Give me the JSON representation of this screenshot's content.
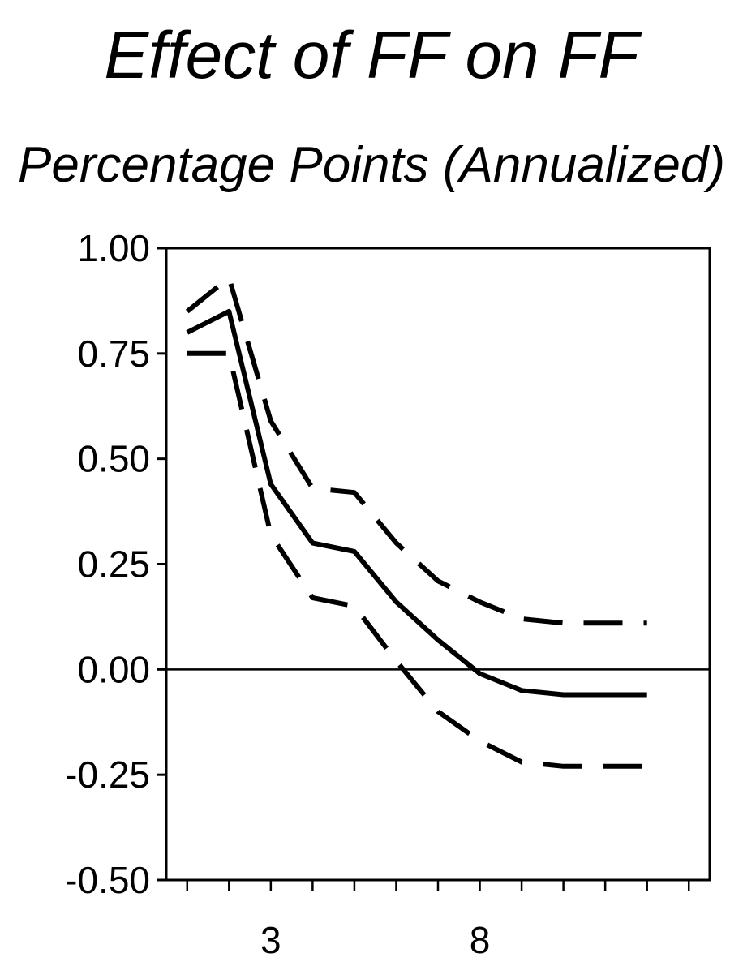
{
  "chart_data": {
    "type": "line",
    "title": "Effect of FF on FF",
    "subtitle": "Percentage Points (Annualized)",
    "xlabel": "",
    "ylabel": "",
    "x": [
      1,
      2,
      3,
      4,
      5,
      6,
      7,
      8,
      9,
      10,
      11,
      12
    ],
    "xlim": [
      0.5,
      13.5
    ],
    "ylim": [
      -0.5,
      1.0
    ],
    "yticks": [
      1.0,
      0.75,
      0.5,
      0.25,
      0.0,
      -0.25,
      -0.5
    ],
    "ytick_labels": [
      "1.00",
      "0.75",
      "0.50",
      "0.25",
      "0.00",
      "-0.25",
      "-0.50"
    ],
    "xtick_labels": [
      {
        "x": 3,
        "label": "3"
      },
      {
        "x": 8,
        "label": "8"
      }
    ],
    "zero_line": 0,
    "grid": false,
    "legend": "none",
    "series": [
      {
        "style": "solid",
        "values": [
          0.8,
          0.85,
          0.44,
          0.3,
          0.28,
          0.16,
          0.07,
          -0.01,
          -0.05,
          -0.06,
          -0.06,
          -0.06
        ]
      },
      {
        "style": "dashed",
        "values": [
          0.85,
          0.93,
          0.59,
          0.43,
          0.42,
          0.3,
          0.21,
          0.16,
          0.12,
          0.11,
          0.11,
          0.11
        ]
      },
      {
        "style": "dashed",
        "values": [
          0.75,
          0.75,
          0.32,
          0.17,
          0.15,
          0.02,
          -0.1,
          -0.17,
          -0.22,
          -0.23,
          -0.23,
          -0.23
        ]
      }
    ]
  }
}
